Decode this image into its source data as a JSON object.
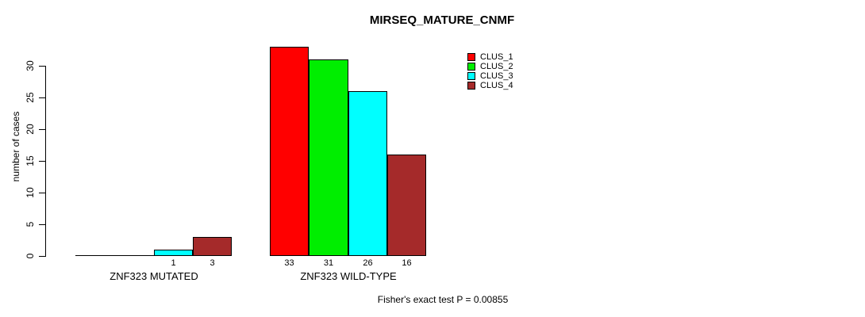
{
  "chart_data": {
    "type": "bar",
    "title": "MIRSEQ_MATURE_CNMF",
    "ylabel": "number of cases",
    "xlabel": "",
    "categories": [
      "ZNF323 MUTATED",
      "ZNF323 WILD-TYPE"
    ],
    "series": [
      {
        "name": "CLUS_1",
        "color": "#ff0000",
        "values": [
          0,
          33
        ]
      },
      {
        "name": "CLUS_2",
        "color": "#00ee00",
        "values": [
          0,
          31
        ]
      },
      {
        "name": "CLUS_3",
        "color": "#00ffff",
        "values": [
          1,
          26
        ]
      },
      {
        "name": "CLUS_4",
        "color": "#a52a2a",
        "values": [
          3,
          16
        ]
      }
    ],
    "yticks": [
      0,
      5,
      10,
      15,
      20,
      25,
      30
    ],
    "ylim": [
      0,
      33
    ],
    "grid": false,
    "legend_position": "top-right",
    "legend_entries": [
      "CLUS_1",
      "CLUS_2",
      "CLUS_3",
      "CLUS_4"
    ],
    "bar_value_labels": {
      "ZNF323 MUTATED": [
        null,
        null,
        1,
        3
      ],
      "ZNF323 WILD-TYPE": [
        33,
        31,
        26,
        16
      ]
    },
    "annotation": "Fisher's exact test P = 0.00855"
  }
}
